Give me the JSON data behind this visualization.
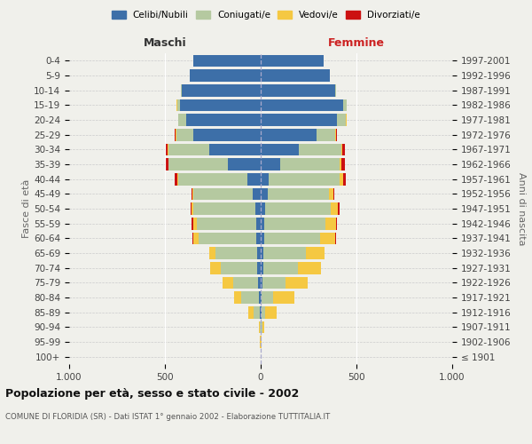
{
  "age_groups": [
    "100+",
    "95-99",
    "90-94",
    "85-89",
    "80-84",
    "75-79",
    "70-74",
    "65-69",
    "60-64",
    "55-59",
    "50-54",
    "45-49",
    "40-44",
    "35-39",
    "30-34",
    "25-29",
    "20-24",
    "15-19",
    "10-14",
    "5-9",
    "0-4"
  ],
  "birth_years": [
    "≤ 1901",
    "1902-1906",
    "1907-1911",
    "1912-1916",
    "1917-1921",
    "1922-1926",
    "1927-1931",
    "1932-1936",
    "1937-1941",
    "1942-1946",
    "1947-1951",
    "1952-1956",
    "1957-1961",
    "1962-1966",
    "1967-1971",
    "1972-1976",
    "1977-1981",
    "1982-1986",
    "1987-1991",
    "1992-1996",
    "1997-2001"
  ],
  "male_celibe": [
    0,
    0,
    0,
    5,
    10,
    15,
    20,
    20,
    25,
    25,
    30,
    40,
    70,
    170,
    270,
    350,
    390,
    420,
    410,
    370,
    350
  ],
  "male_coniugato": [
    0,
    2,
    5,
    30,
    90,
    130,
    190,
    215,
    300,
    310,
    320,
    310,
    360,
    310,
    210,
    90,
    40,
    15,
    5,
    2,
    0
  ],
  "male_vedovo": [
    0,
    2,
    5,
    30,
    40,
    55,
    55,
    35,
    25,
    15,
    10,
    5,
    5,
    0,
    5,
    5,
    0,
    5,
    0,
    0,
    0
  ],
  "male_divorziato": [
    0,
    0,
    0,
    0,
    0,
    0,
    0,
    0,
    5,
    10,
    5,
    8,
    15,
    15,
    10,
    5,
    2,
    0,
    0,
    0,
    0
  ],
  "female_celibe": [
    0,
    0,
    2,
    5,
    5,
    10,
    15,
    15,
    20,
    20,
    25,
    35,
    40,
    100,
    200,
    290,
    400,
    430,
    390,
    360,
    330
  ],
  "female_coniugata": [
    0,
    2,
    5,
    20,
    60,
    120,
    180,
    220,
    290,
    320,
    340,
    320,
    370,
    310,
    220,
    100,
    45,
    20,
    5,
    2,
    0
  ],
  "female_vedova": [
    0,
    2,
    10,
    60,
    110,
    115,
    120,
    100,
    80,
    55,
    40,
    25,
    20,
    10,
    8,
    5,
    2,
    0,
    0,
    0,
    0
  ],
  "female_divorziata": [
    0,
    0,
    0,
    0,
    0,
    0,
    0,
    0,
    5,
    5,
    8,
    5,
    15,
    20,
    12,
    5,
    2,
    0,
    0,
    0,
    0
  ],
  "color_celibe": "#3d6fa8",
  "color_coniugato": "#b5c9a0",
  "color_vedovo": "#f5c842",
  "color_divorziato": "#cc1111",
  "background_color": "#f0f0eb",
  "title": "Popolazione per età, sesso e stato civile - 2002",
  "subtitle": "COMUNE DI FLORIDIA (SR) - Dati ISTAT 1° gennaio 2002 - Elaborazione TUTTITALIA.IT",
  "label_maschi": "Maschi",
  "label_femmine": "Femmine",
  "ylabel_left": "Fasce di età",
  "ylabel_right": "Anni di nascita",
  "xlim": 1000,
  "legend_labels": [
    "Celibi/Nubili",
    "Coniugati/e",
    "Vedovi/e",
    "Divorziati/e"
  ]
}
